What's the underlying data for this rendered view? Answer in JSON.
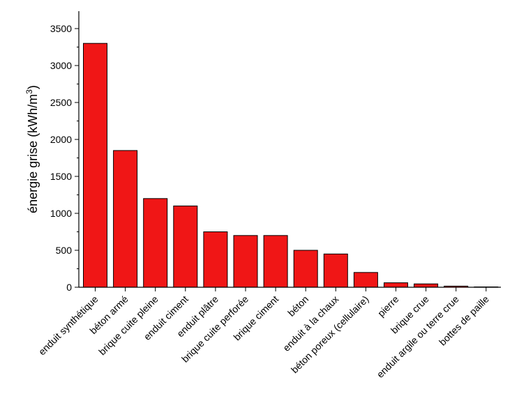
{
  "chart_data": {
    "type": "bar",
    "categories": [
      "enduit synthétique",
      "béton armé",
      "brique cuite pleine",
      "enduit ciment",
      "enduit plâtre",
      "brique cuite perforée",
      "brique ciment",
      "béton",
      "enduit à la chaux",
      "béton poreux (cellulaire)",
      "pierre",
      "brique crue",
      "enduit argile ou terre crue",
      "bottes de paille"
    ],
    "values": [
      3300,
      1850,
      1200,
      1100,
      750,
      700,
      700,
      500,
      450,
      200,
      60,
      45,
      15,
      5
    ],
    "ylabel_main": "énergie grise (kWh/m",
    "ylabel_sup": "3",
    "ylabel_close": ")",
    "ylim": [
      0,
      3500
    ],
    "yticks": [
      "0",
      "500",
      "1000",
      "1500",
      "2000",
      "2500",
      "3000",
      "3500"
    ],
    "grid": false,
    "colors": {
      "bar": "#f01616",
      "bar_stroke": "#000000"
    }
  }
}
